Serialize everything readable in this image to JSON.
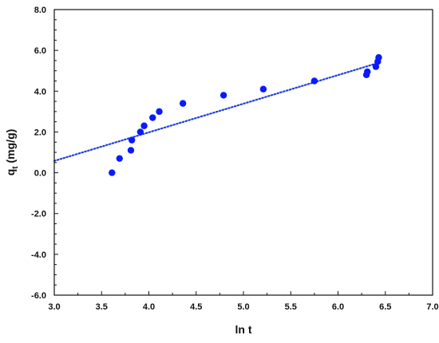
{
  "chart_data": {
    "type": "scatter",
    "xlabel": "ln t",
    "ylabel": {
      "base": "q",
      "subscript": "t",
      "rest": " (mg/g)"
    },
    "xlim": [
      3.0,
      7.0
    ],
    "ylim": [
      -6.0,
      8.0
    ],
    "xticks": [
      3.0,
      3.5,
      4.0,
      4.5,
      5.0,
      5.5,
      6.0,
      6.5,
      7.0
    ],
    "yticks": [
      -6.0,
      -4.0,
      -2.0,
      0.0,
      2.0,
      4.0,
      6.0,
      8.0
    ],
    "xtick_labels": [
      "3.0",
      "3.5",
      "4.0",
      "4.5",
      "5.0",
      "5.5",
      "6.0",
      "6.5",
      "7.0"
    ],
    "ytick_labels": [
      "-6.0",
      "-4.0",
      "-2.0",
      "0.0",
      "2.0",
      "4.0",
      "6.0",
      "8.0"
    ],
    "grid": false,
    "points": [
      {
        "x": 3.61,
        "y": 0.0
      },
      {
        "x": 3.69,
        "y": 0.7
      },
      {
        "x": 3.81,
        "y": 1.1
      },
      {
        "x": 3.82,
        "y": 1.6
      },
      {
        "x": 3.91,
        "y": 2.0
      },
      {
        "x": 3.95,
        "y": 2.3
      },
      {
        "x": 4.04,
        "y": 2.7
      },
      {
        "x": 4.11,
        "y": 3.0
      },
      {
        "x": 4.36,
        "y": 3.4
      },
      {
        "x": 4.79,
        "y": 3.8
      },
      {
        "x": 5.21,
        "y": 4.1
      },
      {
        "x": 5.75,
        "y": 4.5
      },
      {
        "x": 6.3,
        "y": 4.8
      },
      {
        "x": 6.31,
        "y": 4.95
      },
      {
        "x": 6.4,
        "y": 5.2
      },
      {
        "x": 6.42,
        "y": 5.45
      },
      {
        "x": 6.43,
        "y": 5.65
      }
    ],
    "trendline": {
      "style": "dotted",
      "x": [
        3.0,
        6.45
      ],
      "y": [
        0.58,
        5.42
      ]
    },
    "colors": {
      "points": "#0a1aff",
      "trendline": "#1f3fe0",
      "axis": "#111111"
    }
  }
}
